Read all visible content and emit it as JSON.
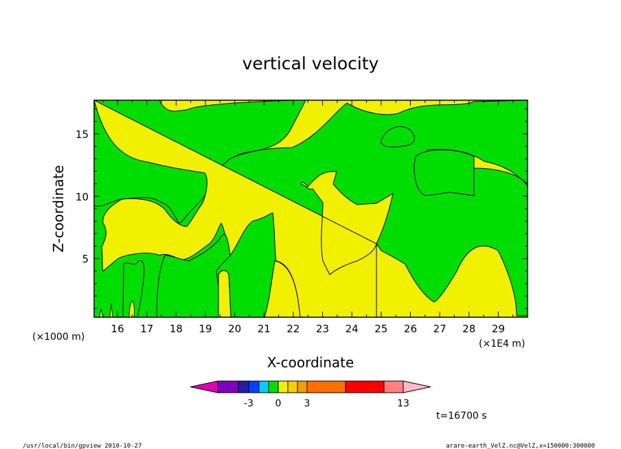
{
  "chart_data": {
    "type": "heatmap",
    "title": "vertical velocity",
    "xlabel": "X-coordinate",
    "ylabel": "Z-coordinate",
    "x_unit_left": "(×1000 m)",
    "x_unit_right": "(×1E4 m)",
    "xlim": [
      15.2,
      30.0
    ],
    "ylim": [
      0.3,
      17.7
    ],
    "x_ticks": [
      "16",
      "17",
      "18",
      "19",
      "20",
      "21",
      "22",
      "23",
      "24",
      "25",
      "26",
      "27",
      "28",
      "29"
    ],
    "y_ticks": [
      "5",
      "10",
      "15"
    ],
    "colors": {
      "yellow": "#f0f000",
      "green": "#00dd00"
    },
    "colorbar": {
      "colors": [
        "#e000b8",
        "#8000c0",
        "#2020a0",
        "#0040ff",
        "#00d0ff",
        "#00e000",
        "#f0f000",
        "#f8d000",
        "#f0a000",
        "#ff7000",
        "#ff0000",
        "#ff8080",
        "#ffb8c8"
      ],
      "labels": [
        "-3",
        "0",
        "3",
        "13"
      ]
    },
    "time_label": "t=16700 s",
    "footer_left": "/usr/local/bin/gpview   2010-10-27",
    "footer_right": "arare-earth_VelZ.nc@VelZ,x=150000:300000"
  }
}
